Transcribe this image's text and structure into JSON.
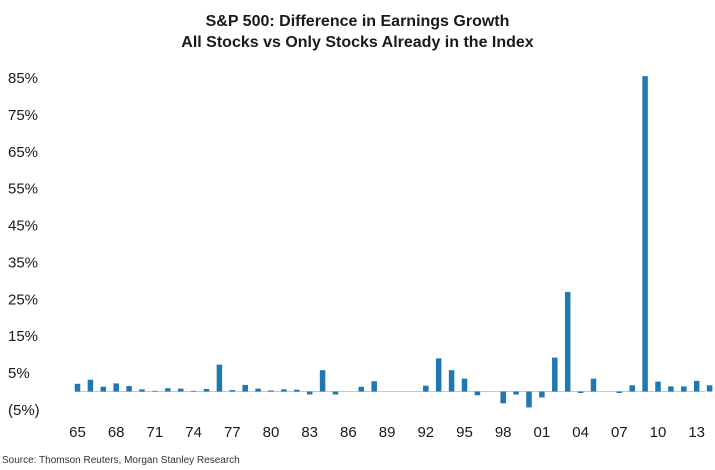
{
  "header": {
    "title_line1": "S&P 500: Difference in Earnings Growth",
    "title_line2": "All Stocks vs Only Stocks Already in the Index"
  },
  "footer": {
    "source": "Source: Thomson Reuters, Morgan Stanley Research"
  },
  "colors": {
    "bar": "#1f78b0"
  },
  "chart_data": {
    "type": "bar",
    "title": "S&P 500: Difference in Earnings Growth All Stocks vs Only Stocks Already in the Index",
    "xlabel": "",
    "ylabel": "",
    "ylim": [
      -5,
      88
    ],
    "y_ticks": [
      "85%",
      "75%",
      "65%",
      "55%",
      "45%",
      "35%",
      "25%",
      "15%",
      "5%",
      "(5%)"
    ],
    "y_tick_values": [
      85,
      75,
      65,
      55,
      45,
      35,
      25,
      15,
      5,
      -5
    ],
    "x_tick_labels": [
      "65",
      "68",
      "71",
      "74",
      "77",
      "80",
      "83",
      "86",
      "89",
      "92",
      "95",
      "98",
      "01",
      "04",
      "07",
      "10",
      "13"
    ],
    "categories": [
      "1965",
      "1966",
      "1967",
      "1968",
      "1969",
      "1970",
      "1971",
      "1972",
      "1973",
      "1974",
      "1975",
      "1976",
      "1977",
      "1978",
      "1979",
      "1980",
      "1981",
      "1982",
      "1983",
      "1984",
      "1985",
      "1986",
      "1987",
      "1988",
      "1989",
      "1990",
      "1991",
      "1992",
      "1993",
      "1994",
      "1995",
      "1996",
      "1997",
      "1998",
      "1999",
      "2000",
      "2001",
      "2002",
      "2003",
      "2004",
      "2005",
      "2006",
      "2007",
      "2008",
      "2009",
      "2010",
      "2011",
      "2012",
      "2013",
      "2014"
    ],
    "values": [
      2.1,
      3.2,
      1.3,
      2.2,
      1.5,
      0.6,
      0.2,
      0.9,
      0.8,
      0.2,
      0.7,
      7.3,
      0.4,
      1.8,
      0.8,
      0.3,
      0.6,
      0.5,
      -0.8,
      5.8,
      -0.8,
      0,
      1.3,
      2.8,
      0,
      0,
      0,
      1.6,
      9.0,
      5.8,
      3.5,
      -1.0,
      0,
      -3.2,
      -0.8,
      -4.3,
      -1.6,
      9.2,
      27.0,
      -0.4,
      3.5,
      0,
      -0.4,
      1.7,
      85.5,
      2.7,
      1.4,
      1.4,
      2.9,
      1.7
    ]
  }
}
